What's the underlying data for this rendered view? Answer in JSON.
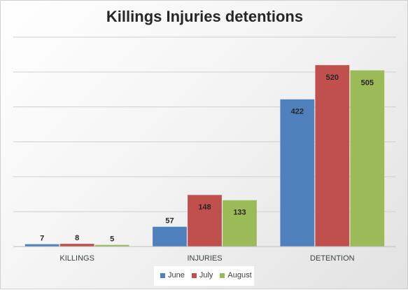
{
  "chart_data": {
    "type": "bar",
    "title": "Killings Injuries detentions",
    "categories": [
      "KILLINGS",
      "INJURIES",
      "DETENTION"
    ],
    "series": [
      {
        "name": "June",
        "values": [
          7,
          57,
          422
        ],
        "color": "#4F81BD"
      },
      {
        "name": "July",
        "values": [
          8,
          148,
          520
        ],
        "color": "#C0504D"
      },
      {
        "name": "August",
        "values": [
          5,
          133,
          505
        ],
        "color": "#9BBB59"
      }
    ],
    "xlabel": "",
    "ylabel": "",
    "ylim": [
      0,
      600
    ],
    "grid": true,
    "y_tick_labels_shown": false,
    "data_labels": true,
    "legend_position": "bottom"
  }
}
